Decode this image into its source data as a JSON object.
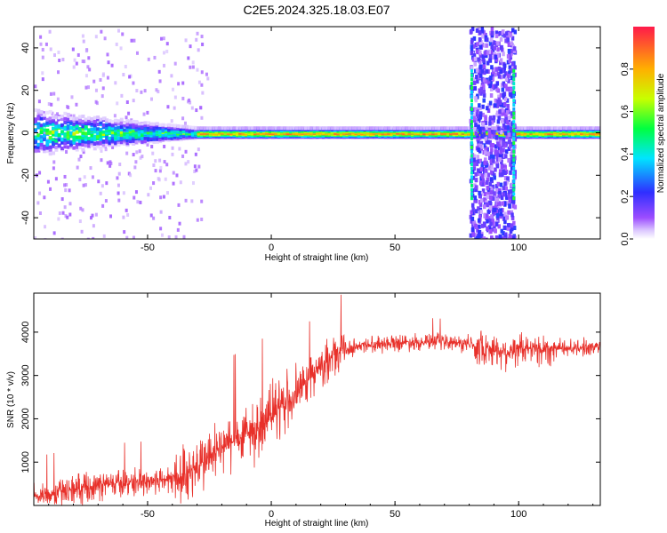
{
  "title": "C2E5.2024.325.18.03.E07",
  "chart_data": [
    {
      "type": "heatmap",
      "title": "C2E5.2024.325.18.03.E07",
      "xlabel": "Height of straight line (km)",
      "ylabel": "Frequency (Hz)",
      "xlim": [
        -96,
        133
      ],
      "ylim": [
        -50,
        50
      ],
      "x_ticks": [
        -50,
        0,
        50,
        100
      ],
      "y_ticks": [
        -40,
        -20,
        0,
        20,
        40
      ],
      "colorbar": {
        "label": "Normalized spectral amplitude",
        "range": [
          0.0,
          1.0
        ],
        "ticks": [
          "0.0",
          "0.2",
          "0.4",
          "0.6",
          "0.8"
        ],
        "colormap": "rainbow"
      },
      "features": {
        "center_line_frequency_hz": 0,
        "noisy_band_x_range_km": [
          80,
          98
        ]
      }
    },
    {
      "type": "line",
      "xlabel": "Height of straight line (km)",
      "ylabel": "SNR (10 * v/v)",
      "xlim": [
        -96,
        133
      ],
      "ylim": [
        0,
        4900
      ],
      "x_ticks": [
        -50,
        0,
        50,
        100
      ],
      "y_ticks": [
        1000,
        2000,
        3000,
        4000
      ],
      "color": "#e8302a",
      "series": [
        {
          "x": [
            -96,
            -90,
            -85,
            -80,
            -75,
            -70,
            -65,
            -60,
            -55,
            -50,
            -45,
            -40,
            -35,
            -30,
            -25,
            -20,
            -15,
            -10,
            -5,
            0,
            5,
            10,
            15,
            20,
            25,
            30,
            35,
            40,
            45,
            50,
            55,
            60,
            65,
            70,
            75,
            80,
            85,
            90,
            95,
            100,
            105,
            110,
            115,
            120,
            125,
            133
          ],
          "y": [
            200,
            260,
            320,
            380,
            430,
            460,
            500,
            520,
            540,
            560,
            580,
            620,
            700,
            900,
            1100,
            1300,
            1500,
            1650,
            1800,
            2050,
            2300,
            2600,
            2900,
            3200,
            3450,
            3600,
            3680,
            3720,
            3740,
            3760,
            3770,
            3780,
            3770,
            3760,
            3750,
            3720,
            3650,
            3600,
            3550,
            3600,
            3620,
            3600,
            3620,
            3630,
            3640,
            3650
          ]
        }
      ]
    }
  ]
}
